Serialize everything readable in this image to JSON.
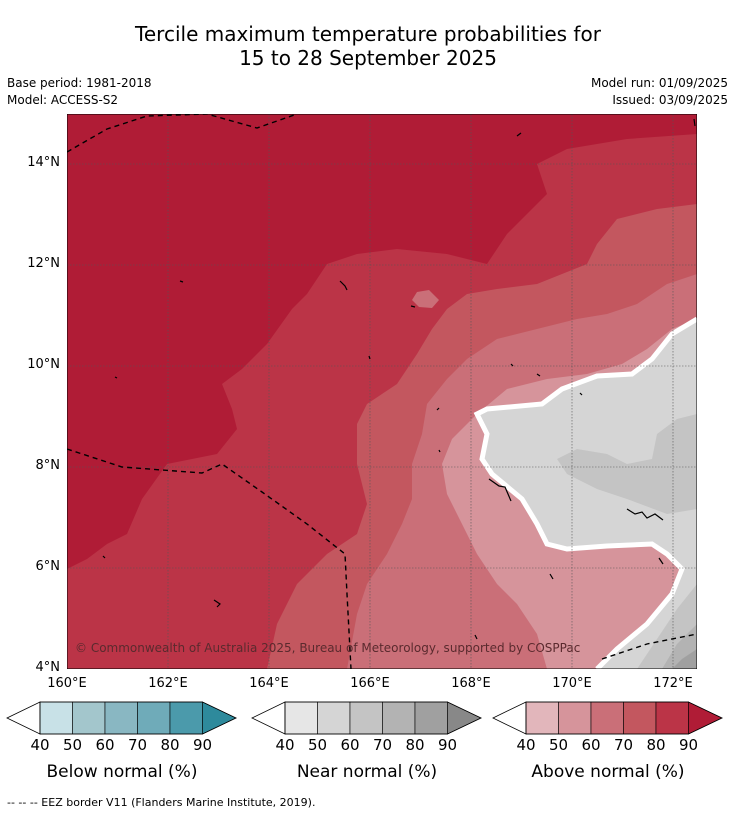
{
  "title_line1": "Tercile maximum temperature probabilities for",
  "title_line2": "15 to 28 September 2025",
  "base_period": "Base period: 1981-2018",
  "model": "Model: ACCESS-S2",
  "model_run": "Model run: 01/09/2025",
  "issued": "Issued: 03/09/2025",
  "copyright": "© Commonwealth of Australia 2025, Bureau of Meteorology, supported by COSPPac",
  "lat_labels": [
    "14°N",
    "12°N",
    "10°N",
    "8°N",
    "6°N",
    "4°N"
  ],
  "lon_labels": [
    "160°E",
    "162°E",
    "164°E",
    "166°E",
    "168°E",
    "170°E",
    "172°E"
  ],
  "colorbars": [
    {
      "name": "Below normal (%)",
      "ticks": [
        "40",
        "50",
        "60",
        "70",
        "80",
        "90"
      ],
      "colors": [
        "#c8e1e7",
        "#a3c6cc",
        "#89b7c2",
        "#6fabb9",
        "#4b9aab",
        "#2e8a9c"
      ]
    },
    {
      "name": "Near normal (%)",
      "ticks": [
        "40",
        "50",
        "60",
        "70",
        "80",
        "90"
      ],
      "colors": [
        "#e6e6e6",
        "#d5d5d5",
        "#c4c4c4",
        "#b3b3b3",
        "#a0a0a0",
        "#888888"
      ]
    },
    {
      "name": "Above normal (%)",
      "ticks": [
        "40",
        "50",
        "60",
        "70",
        "80",
        "90"
      ],
      "colors": [
        "#e2b6bb",
        "#d6949b",
        "#ca6f78",
        "#c3575f",
        "#bb3447",
        "#b01c36"
      ]
    }
  ],
  "footnote": "--  --  -- EEZ border V11 (Flanders Marine Institute, 2019)."
}
